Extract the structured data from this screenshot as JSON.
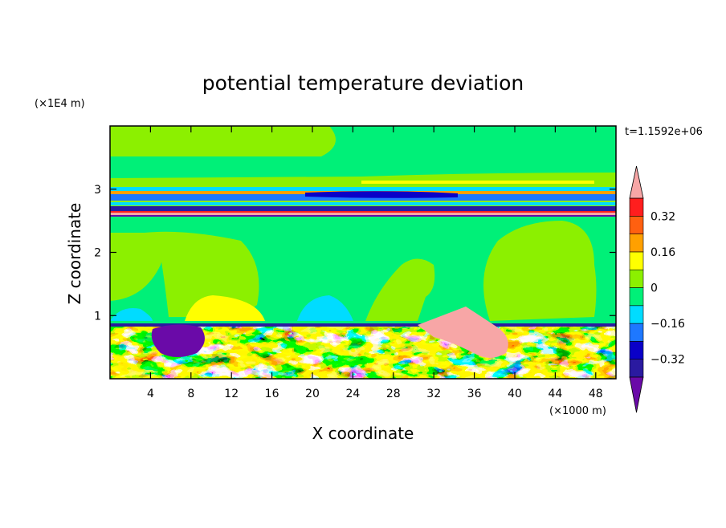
{
  "chart_data": {
    "type": "heatmap",
    "title": "potential temperature deviation",
    "xlabel": "X coordinate",
    "ylabel": "Z coordinate",
    "x_units": "(×1000 m)",
    "y_units": "(×1E4 m)",
    "time_label": "t=1.1592e+06",
    "xlim": [
      0,
      50
    ],
    "ylim": [
      0,
      4
    ],
    "x_ticks": [
      4,
      8,
      12,
      16,
      20,
      24,
      28,
      32,
      36,
      40,
      44,
      48
    ],
    "x_tick_labels": [
      "4",
      "8",
      "12",
      "16",
      "20",
      "24",
      "28",
      "32",
      "36",
      "40",
      "44",
      "48"
    ],
    "y_ticks": [
      1,
      2,
      3
    ],
    "y_tick_labels": [
      "1",
      "2",
      "3"
    ],
    "colorbar": {
      "levels": [
        -0.4,
        -0.32,
        -0.24,
        -0.16,
        -0.08,
        0,
        0.08,
        0.16,
        0.24,
        0.32,
        0.4
      ],
      "labeled_levels": [
        0.32,
        0.16,
        0,
        -0.16,
        -0.32
      ],
      "labels": [
        "0.32",
        "0.16",
        "0",
        "−0.16",
        "−0.32"
      ],
      "colors_bottom_to_top": [
        "#6a0aa8",
        "#2a1aa0",
        "#0a00c8",
        "#1e78ff",
        "#00dcff",
        "#00f078",
        "#8cf000",
        "#ffff00",
        "#ffa000",
        "#ff6010",
        "#ff1e1e",
        "#f7a6a6"
      ],
      "extend": "both"
    },
    "fields": {
      "upper_layer": "mostly near 0 (greens) above z=1 with thin strong bands near z=2.6–3.0",
      "boundary_layer": "turbulent mixed layer below z≈0.9 with values from below −0.32 to above 0.32"
    }
  }
}
